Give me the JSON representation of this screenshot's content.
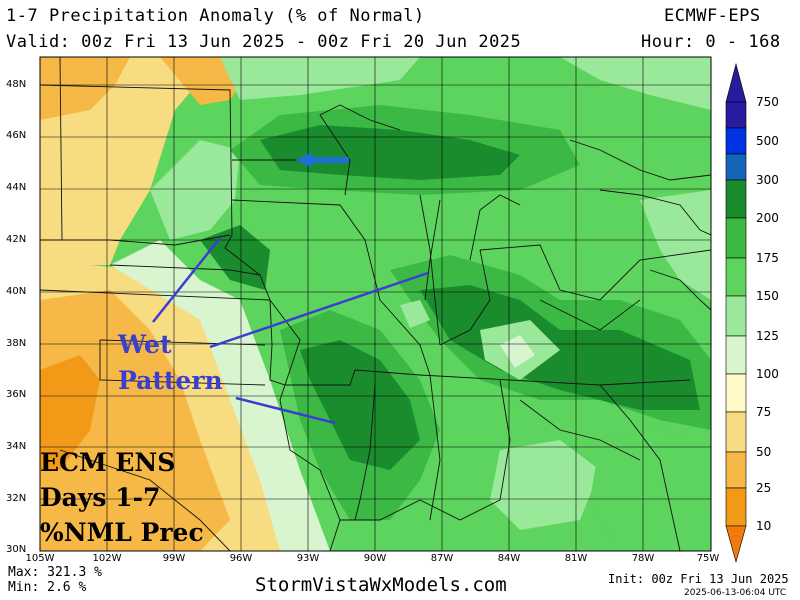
{
  "header": {
    "title": "1-7 Precipitation Anomaly (% of Normal)",
    "model": "ECMWF-EPS",
    "valid": "Valid: 00z Fri 13 Jun 2025 - 00z Fri 20 Jun 2025",
    "hours": "Hour: 0 - 168"
  },
  "lat_labels": [
    "48N",
    "46N",
    "44N",
    "42N",
    "40N",
    "38N",
    "36N",
    "34N",
    "32N",
    "30N"
  ],
  "lon_labels": [
    "105W",
    "102W",
    "99W",
    "96W",
    "93W",
    "90W",
    "87W",
    "84W",
    "81W",
    "78W",
    "75W"
  ],
  "colorbar": {
    "levels": [
      "750",
      "500",
      "300",
      "200",
      "175",
      "150",
      "125",
      "100",
      "75",
      "50",
      "25",
      "10"
    ],
    "colors": {
      "c750": "#2a1a9e",
      "c500": "#0033e6",
      "c300": "#1565b8",
      "c200": "#1a8c2e",
      "c175": "#3cb844",
      "c150": "#5dd45d",
      "c125": "#9ae89a",
      "c100": "#d8f5cf",
      "c75": "#fffac8",
      "c50": "#f8dc82",
      "c25": "#f6b847",
      "c10": "#f29a18",
      "below": "#ee7a10"
    }
  },
  "annotations": {
    "wet_line1": "Wet",
    "wet_line2": "Pattern",
    "ens_line1": "ECM ENS",
    "ens_line2": "Days 1-7",
    "ens_line3": "%NML Prec"
  },
  "footer": {
    "max": "Max: 321.3 %",
    "min": "Min: 2.6 %",
    "site": "StormVistaWxModels.com",
    "init": "Init: 00z Fri 13 Jun 2025",
    "stamp": "2025-06-13-06:04 UTC"
  }
}
